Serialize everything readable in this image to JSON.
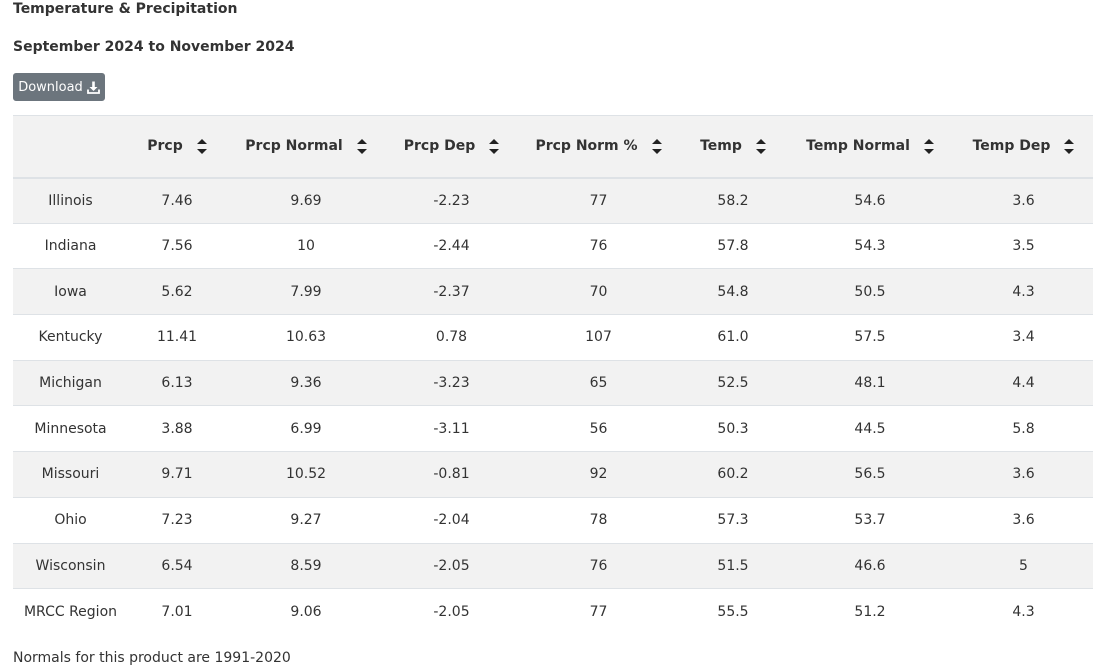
{
  "title": "Temperature & Precipitation",
  "subtitle": "September 2024 to November 2024",
  "download": {
    "label": "Download",
    "icon": "download-icon"
  },
  "table": {
    "columns": [
      "",
      "Prcp",
      "Prcp Normal",
      "Prcp Dep",
      "Prcp Norm %",
      "Temp",
      "Temp Normal",
      "Temp Dep"
    ],
    "sort_icon": "sort-icon",
    "rows": [
      [
        "Illinois",
        "7.46",
        "9.69",
        "-2.23",
        "77",
        "58.2",
        "54.6",
        "3.6"
      ],
      [
        "Indiana",
        "7.56",
        "10",
        "-2.44",
        "76",
        "57.8",
        "54.3",
        "3.5"
      ],
      [
        "Iowa",
        "5.62",
        "7.99",
        "-2.37",
        "70",
        "54.8",
        "50.5",
        "4.3"
      ],
      [
        "Kentucky",
        "11.41",
        "10.63",
        "0.78",
        "107",
        "61.0",
        "57.5",
        "3.4"
      ],
      [
        "Michigan",
        "6.13",
        "9.36",
        "-3.23",
        "65",
        "52.5",
        "48.1",
        "4.4"
      ],
      [
        "Minnesota",
        "3.88",
        "6.99",
        "-3.11",
        "56",
        "50.3",
        "44.5",
        "5.8"
      ],
      [
        "Missouri",
        "9.71",
        "10.52",
        "-0.81",
        "92",
        "60.2",
        "56.5",
        "3.6"
      ],
      [
        "Ohio",
        "7.23",
        "9.27",
        "-2.04",
        "78",
        "57.3",
        "53.7",
        "3.6"
      ],
      [
        "Wisconsin",
        "6.54",
        "8.59",
        "-2.05",
        "76",
        "51.5",
        "46.6",
        "5"
      ],
      [
        "MRCC Region",
        "7.01",
        "9.06",
        "-2.05",
        "77",
        "55.5",
        "51.2",
        "4.3"
      ]
    ]
  },
  "footnote": "Normals for this product are 1991-2020",
  "colors": {
    "button_bg": "#6c757d",
    "stripe": "#f2f2f2",
    "border": "#dee2e6",
    "text": "#333333"
  }
}
